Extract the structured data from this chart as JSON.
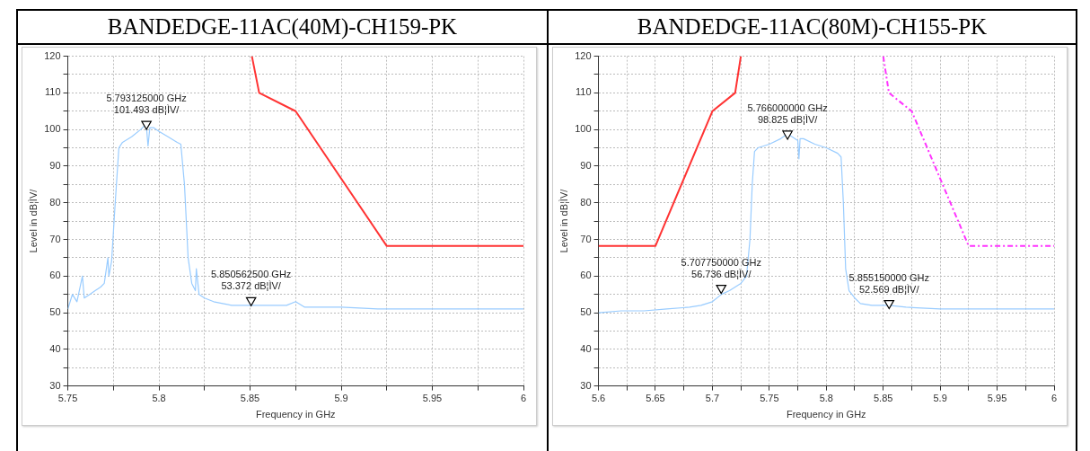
{
  "chart_data": [
    {
      "type": "line",
      "title": "BANDEDGE-11AC(40M)-CH159-PK",
      "xlabel": "Frequency in GHz",
      "ylabel": "Level in dB¦ÌV/",
      "xlim": [
        5.75,
        6
      ],
      "ylim": [
        30,
        120
      ],
      "xticks": [
        5.75,
        {
          "value": 5.775,
          "label": null
        },
        5.8,
        {
          "value": 5.825,
          "label": null
        },
        5.85,
        {
          "value": 5.875,
          "label": null
        },
        5.9,
        {
          "value": 5.925,
          "label": null
        },
        5.95,
        {
          "value": 5.975,
          "label": null
        },
        6
      ],
      "yticks": [
        30,
        {
          "value": 35,
          "label": null
        },
        40,
        {
          "value": 45,
          "label": null
        },
        50,
        {
          "value": 55,
          "label": null
        },
        60,
        {
          "value": 65,
          "label": null
        },
        70,
        {
          "value": 75,
          "label": null
        },
        80,
        {
          "value": 85,
          "label": null
        },
        90,
        {
          "value": 95,
          "label": null
        },
        100,
        {
          "value": 105,
          "label": null
        },
        110,
        {
          "value": 115,
          "label": null
        },
        120
      ],
      "grid": true,
      "legend": false,
      "series": [
        {
          "color": "#99ccff",
          "x": [
            5.75,
            5.7525,
            5.755,
            5.758,
            5.759,
            5.762,
            5.765,
            5.768,
            5.77,
            5.772,
            5.7725,
            5.774,
            5.776,
            5.778,
            5.78,
            5.785,
            5.79,
            5.793,
            5.794,
            5.795,
            5.797,
            5.8,
            5.805,
            5.81,
            5.812,
            5.814,
            5.816,
            5.818,
            5.82,
            5.8205,
            5.822,
            5.825,
            5.83,
            5.835,
            5.84,
            5.85,
            5.86,
            5.87,
            5.875,
            5.88,
            5.9,
            5.92,
            5.94,
            5.96,
            5.98,
            6
          ],
          "values": [
            51,
            55,
            53,
            60,
            54,
            55,
            56,
            57,
            58,
            65,
            60,
            64,
            80,
            95,
            96.5,
            98,
            100,
            101.5,
            95.5,
            100.5,
            100.5,
            99.5,
            98,
            96.5,
            96,
            85,
            65,
            58,
            56,
            62,
            55,
            54,
            53,
            52.5,
            52,
            52,
            52,
            52,
            53,
            51.5,
            51.5,
            51,
            51,
            51,
            51,
            51
          ]
        },
        {
          "color": "#ff3333",
          "x": [
            5.851,
            5.855,
            5.875,
            5.925,
            6
          ],
          "values": [
            120,
            110,
            105,
            68.2,
            68.2
          ]
        },
        {
          "type": "scatter",
          "color": "#000000",
          "marker": "triangle",
          "x": [
            5.793125,
            5.8505625
          ],
          "values": [
            101.493,
            53.372
          ]
        }
      ],
      "annotations": [
        {
          "text": "5.793125000 GHz\n101.493 dB¦ÌV/",
          "x": 5.793125,
          "y": 101.493
        },
        {
          "text": "5.850562500 GHz\n53.372 dB¦ÌV/",
          "x": 5.8505625,
          "y": 53.372
        }
      ]
    },
    {
      "type": "line",
      "title": "BANDEDGE-11AC(80M)-CH155-PK",
      "xlabel": "Frequency in GHz",
      "ylabel": "Level in dB¦ÌV/",
      "xlim": [
        5.6,
        6
      ],
      "ylim": [
        30,
        120
      ],
      "xticks": [
        5.6,
        {
          "value": 5.625,
          "label": null
        },
        5.65,
        {
          "value": 5.675,
          "label": null
        },
        5.7,
        {
          "value": 5.725,
          "label": null
        },
        5.75,
        {
          "value": 5.775,
          "label": null
        },
        5.8,
        {
          "value": 5.825,
          "label": null
        },
        5.85,
        {
          "value": 5.875,
          "label": null
        },
        5.9,
        {
          "value": 5.925,
          "label": null
        },
        5.95,
        {
          "value": 5.975,
          "label": null
        },
        6
      ],
      "yticks": [
        30,
        {
          "value": 35,
          "label": null
        },
        40,
        {
          "value": 45,
          "label": null
        },
        50,
        {
          "value": 55,
          "label": null
        },
        60,
        {
          "value": 65,
          "label": null
        },
        70,
        {
          "value": 75,
          "label": null
        },
        80,
        {
          "value": 85,
          "label": null
        },
        90,
        {
          "value": 95,
          "label": null
        },
        100,
        {
          "value": 105,
          "label": null
        },
        110,
        {
          "value": 115,
          "label": null
        },
        120
      ],
      "grid": true,
      "legend": false,
      "series": [
        {
          "color": "#99ccff",
          "x": [
            5.6,
            5.62,
            5.64,
            5.66,
            5.68,
            5.69,
            5.7,
            5.708,
            5.715,
            5.725,
            5.73,
            5.733,
            5.735,
            5.737,
            5.74,
            5.75,
            5.76,
            5.766,
            5.77,
            5.775,
            5.776,
            5.777,
            5.78,
            5.79,
            5.8,
            5.81,
            5.813,
            5.815,
            5.817,
            5.82,
            5.825,
            5.83,
            5.84,
            5.855,
            5.87,
            5.9,
            5.95,
            6
          ],
          "values": [
            50,
            50.5,
            50.5,
            51,
            51.5,
            52,
            53,
            55,
            56,
            58,
            60,
            70,
            85,
            94,
            95,
            96,
            97.5,
            98.8,
            98,
            97,
            92,
            97.5,
            97.5,
            96,
            95,
            93.5,
            92.5,
            80,
            62,
            56,
            54,
            52.5,
            52,
            52,
            51.5,
            51,
            51,
            51
          ]
        },
        {
          "color": "#ff3333",
          "x": [
            5.6,
            5.65,
            5.7,
            5.72,
            5.725
          ],
          "values": [
            68.2,
            68.2,
            105,
            110,
            120
          ]
        },
        {
          "color": "#ff33ff",
          "line_style": "dashed",
          "x": [
            5.85,
            5.855,
            5.875,
            5.925,
            6
          ],
          "values": [
            120,
            110,
            105,
            68.2,
            68.2
          ]
        },
        {
          "type": "scatter",
          "color": "#000000",
          "marker": "triangle",
          "x": [
            5.766,
            5.70775,
            5.85515
          ],
          "values": [
            98.825,
            56.736,
            52.569
          ]
        }
      ],
      "annotations": [
        {
          "text": "5.766000000 GHz\n98.825 dB¦ÌV/",
          "x": 5.766,
          "y": 98.825
        },
        {
          "text": "5.707750000 GHz\n56.736 dB¦ÌV/",
          "x": 5.70775,
          "y": 56.736
        },
        {
          "text": "5.855150000 GHz\n52.569 dB¦ÌV/",
          "x": 5.85515,
          "y": 52.569
        }
      ]
    }
  ]
}
